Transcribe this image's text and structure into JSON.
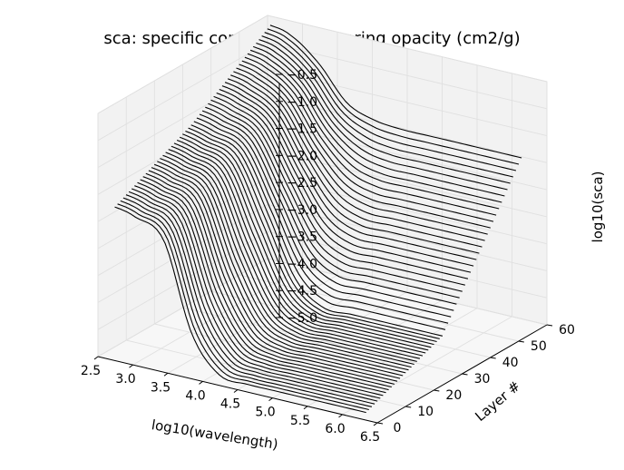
{
  "chart_data": {
    "type": "line",
    "projection": "3d",
    "title": "sca: specific continuous scattering opacity (cm2/g)",
    "xlabel": "log10(wavelength)",
    "ylabel": "Layer #",
    "zlabel": "log10(sca)",
    "xlim": [
      2.5,
      6.5
    ],
    "ylim": [
      0,
      60
    ],
    "zlim": [
      -5.0,
      -0.5
    ],
    "x_ticks": [
      "2.5",
      "3.0",
      "3.5",
      "4.0",
      "4.5",
      "5.0",
      "5.5",
      "6.0",
      "6.5"
    ],
    "y_ticks": [
      "0",
      "10",
      "20",
      "30",
      "40",
      "50",
      "60"
    ],
    "z_ticks": [
      "-5.0",
      "-4.5",
      "-4.0",
      "-3.5",
      "-3.0",
      "-2.5",
      "-2.0",
      "-1.5",
      "-1.0",
      "-0.5"
    ],
    "grid": true,
    "series_color": "#000000",
    "pane_color": "#f2f2f2",
    "layers": {
      "first": 1,
      "last": 56,
      "step": 1
    },
    "sample_curves": [
      {
        "layer": 1,
        "x": [
          2.7,
          3.0,
          3.4,
          3.8,
          4.2,
          4.6,
          5.0,
          5.5,
          6.0,
          6.3
        ],
        "y": [
          -2.2,
          -2.3,
          -2.6,
          -4.2,
          -4.85,
          -4.9,
          -4.9,
          -4.9,
          -4.9,
          -4.9
        ]
      },
      {
        "layer": 28,
        "x": [
          2.7,
          3.0,
          3.4,
          3.8,
          4.2,
          4.6,
          5.0,
          5.5,
          6.0,
          6.3
        ],
        "y": [
          -1.5,
          -1.6,
          -1.8,
          -2.8,
          -3.9,
          -4.3,
          -4.3,
          -4.3,
          -4.3,
          -4.3
        ]
      },
      {
        "layer": 56,
        "x": [
          2.7,
          3.0,
          3.4,
          3.8,
          4.2,
          4.6,
          5.0,
          5.5,
          6.0,
          6.3
        ],
        "y": [
          -0.5,
          -0.6,
          -1.0,
          -1.6,
          -1.8,
          -1.85,
          -1.85,
          -1.85,
          -1.85,
          -1.85
        ]
      }
    ]
  }
}
